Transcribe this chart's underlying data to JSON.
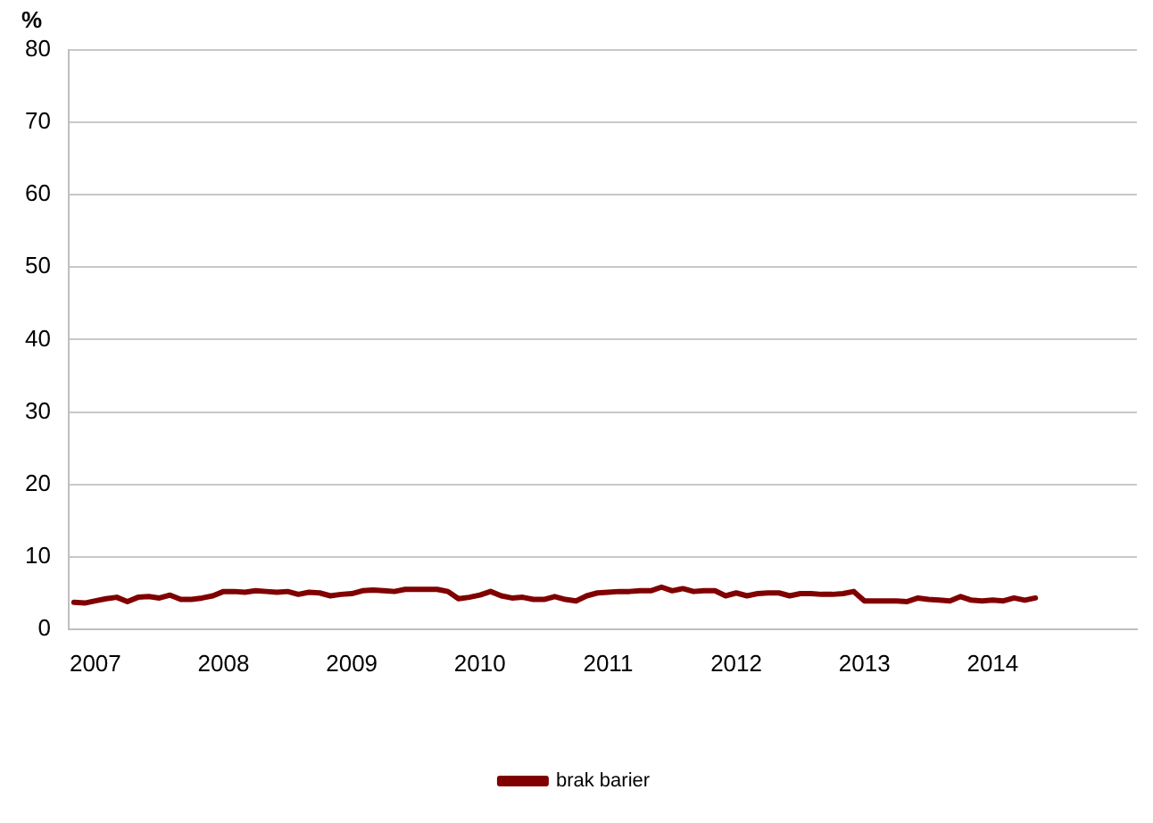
{
  "chart_data": {
    "type": "line",
    "ylabel": "%",
    "categories": [
      null,
      null,
      "2007",
      null,
      null,
      null,
      null,
      null,
      null,
      null,
      null,
      null,
      null,
      null,
      "2008",
      null,
      null,
      null,
      null,
      null,
      null,
      null,
      null,
      null,
      null,
      null,
      "2009",
      null,
      null,
      null,
      null,
      null,
      null,
      null,
      null,
      null,
      null,
      null,
      "2010",
      null,
      null,
      null,
      null,
      null,
      null,
      null,
      null,
      null,
      null,
      null,
      "2011",
      null,
      null,
      null,
      null,
      null,
      null,
      null,
      null,
      null,
      null,
      null,
      "2012",
      null,
      null,
      null,
      null,
      null,
      null,
      null,
      null,
      null,
      null,
      null,
      "2013",
      null,
      null,
      null,
      null,
      null,
      null,
      null,
      null,
      null,
      null,
      null,
      "2014",
      null,
      null,
      null,
      null,
      null,
      null,
      null,
      null,
      null,
      null,
      null,
      null,
      null
    ],
    "series": [
      {
        "name": "brak barier",
        "color": "#800000",
        "values": [
          3.7,
          3.6,
          3.9,
          4.2,
          4.4,
          3.8,
          4.4,
          4.5,
          4.3,
          4.7,
          4.1,
          4.1,
          4.3,
          4.6,
          5.2,
          5.2,
          5.1,
          5.3,
          5.2,
          5.1,
          5.2,
          4.8,
          5.1,
          5.0,
          4.6,
          4.8,
          4.9,
          5.3,
          5.4,
          5.3,
          5.2,
          5.5,
          5.5,
          5.5,
          5.5,
          5.2,
          4.2,
          4.4,
          4.7,
          5.2,
          4.6,
          4.3,
          4.4,
          4.1,
          4.1,
          4.5,
          4.1,
          3.9,
          4.6,
          5.0,
          5.1,
          5.2,
          5.2,
          5.3,
          5.3,
          5.8,
          5.3,
          5.6,
          5.2,
          5.3,
          5.3,
          4.6,
          5.0,
          4.6,
          4.9,
          5.0,
          5.0,
          4.6,
          4.9,
          4.9,
          4.8,
          4.8,
          4.9,
          5.2,
          3.9,
          3.9,
          3.9,
          3.9,
          3.8,
          4.3,
          4.1,
          4.0,
          3.9,
          4.5,
          4.0,
          3.9,
          4.0,
          3.9,
          4.3,
          4.0,
          4.3,
          null,
          null,
          null,
          null,
          null,
          null,
          null,
          null,
          null
        ]
      }
    ],
    "ylim": [
      0,
      80
    ],
    "yticks": [
      0,
      10,
      20,
      30,
      40,
      50,
      60,
      70,
      80
    ],
    "grid": "y",
    "legend": "bottom",
    "marker": "none",
    "line_style": "solid"
  }
}
